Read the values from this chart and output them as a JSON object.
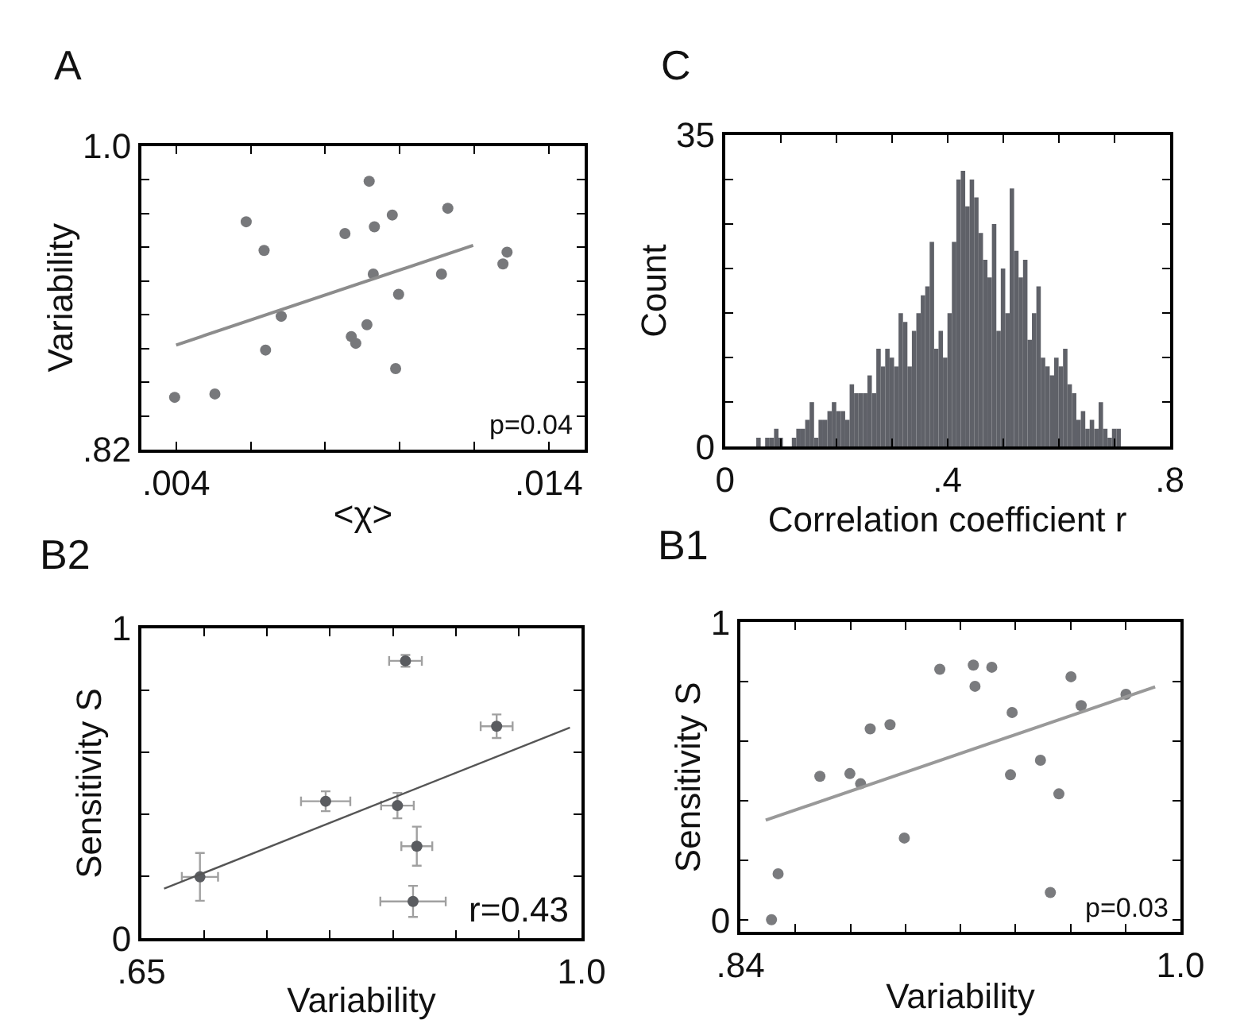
{
  "chart_data": [
    {
      "type": "scatter",
      "title": "A",
      "xlabel": "<χ>",
      "ylabel": "Variability",
      "xlim": [
        0.00307,
        0.01496
      ],
      "ylim": [
        0.82,
        1.0
      ],
      "xticks": [
        {
          "value": 0.004,
          "label": ".004"
        },
        {
          "value": 0.006,
          "label": null
        },
        {
          "value": 0.008,
          "label": null
        },
        {
          "value": 0.01,
          "label": null
        },
        {
          "value": 0.012,
          "label": null
        },
        {
          "value": 0.014,
          "label": ".014"
        }
      ],
      "yticks": [
        {
          "value": 0.82,
          "label": ".82"
        },
        {
          "value": 0.84,
          "label": null
        },
        {
          "value": 0.86,
          "label": null
        },
        {
          "value": 0.88,
          "label": null
        },
        {
          "value": 0.9,
          "label": null
        },
        {
          "value": 0.92,
          "label": null
        },
        {
          "value": 0.94,
          "label": null
        },
        {
          "value": 0.96,
          "label": null
        },
        {
          "value": 0.98,
          "label": null
        },
        {
          "value": 1.0,
          "label": "1.0"
        }
      ],
      "marker": "circle",
      "annotations": [
        "p=0.04"
      ],
      "series": [
        {
          "type": "scatter",
          "color": "#77787b",
          "x": [
            0.00396,
            0.00504,
            0.00588,
            0.00636,
            0.0064,
            0.00682,
            0.00853,
            0.0087,
            0.00882,
            0.00912,
            0.00918,
            0.00932,
            0.00929,
            0.0098,
            0.00997,
            0.00989,
            0.01112,
            0.01129,
            0.01277,
            0.01288
          ],
          "values": [
            0.851,
            0.853,
            0.955,
            0.938,
            0.879,
            0.899,
            0.948,
            0.887,
            0.883,
            0.894,
            0.979,
            0.952,
            0.924,
            0.959,
            0.912,
            0.868,
            0.924,
            0.963,
            0.93,
            0.937
          ]
        },
        {
          "type": "line",
          "color": "#8c8c8c",
          "line_style": "solid",
          "marker": "none",
          "x": [
            0.004,
            0.01197
          ],
          "values": [
            0.882,
            0.941
          ]
        }
      ]
    },
    {
      "type": "histogram",
      "title": "C",
      "xlabel": "Correlation coefficient r",
      "ylabel": "Count",
      "xlim": [
        0,
        0.8
      ],
      "ylim": [
        0,
        35
      ],
      "color": "#5f6168",
      "xticks": [
        0,
        {
          "value": 0.1,
          "label": null
        },
        {
          "value": 0.2,
          "label": null
        },
        {
          "value": 0.3,
          "label": null
        },
        {
          "value": 0.4,
          "label": ".4"
        },
        {
          "value": 0.5,
          "label": null
        },
        {
          "value": 0.6,
          "label": null
        },
        {
          "value": 0.7,
          "label": null
        },
        {
          "value": 0.8,
          "label": ".8"
        }
      ],
      "yticks": [
        0,
        {
          "value": 5,
          "label": null
        },
        {
          "value": 10,
          "label": null
        },
        {
          "value": 15,
          "label": null
        },
        {
          "value": 20,
          "label": null
        },
        {
          "value": 25,
          "label": null
        },
        {
          "value": 30,
          "label": null
        },
        35
      ],
      "bins": [
        0.056,
        0.064,
        0.072,
        0.08,
        0.088,
        0.096,
        0.104,
        0.112,
        0.12,
        0.128,
        0.136,
        0.144,
        0.152,
        0.16,
        0.168,
        0.176,
        0.184,
        0.192,
        0.2,
        0.208,
        0.216,
        0.224,
        0.232,
        0.24,
        0.248,
        0.256,
        0.264,
        0.272,
        0.28,
        0.288,
        0.296,
        0.304,
        0.312,
        0.32,
        0.328,
        0.336,
        0.344,
        0.352,
        0.36,
        0.368,
        0.376,
        0.384,
        0.392,
        0.4,
        0.408,
        0.416,
        0.424,
        0.432,
        0.44,
        0.448,
        0.456,
        0.464,
        0.472,
        0.48,
        0.488,
        0.496,
        0.504,
        0.512,
        0.52,
        0.528,
        0.536,
        0.544,
        0.552,
        0.56,
        0.568,
        0.576,
        0.584,
        0.592,
        0.6,
        0.608,
        0.616,
        0.624,
        0.632,
        0.64,
        0.648,
        0.656,
        0.664,
        0.672,
        0.68,
        0.688,
        0.696,
        0.704,
        0.712
      ],
      "values": [
        1,
        0,
        1,
        1,
        2,
        1,
        0,
        0,
        1,
        2,
        2,
        3,
        5,
        1,
        3,
        3,
        4,
        5,
        4,
        4,
        3,
        7,
        6,
        6,
        6,
        8,
        6,
        11,
        9,
        11,
        10,
        9,
        15,
        14,
        9,
        13,
        15,
        17,
        18,
        23,
        11,
        13,
        10,
        15,
        23,
        30,
        31,
        27,
        30,
        28,
        24,
        21,
        19,
        25,
        13,
        20,
        15,
        29,
        22,
        19,
        21,
        12,
        15,
        18,
        10,
        9,
        8,
        10,
        9,
        11,
        7,
        6,
        3,
        4,
        2,
        3,
        2,
        5,
        2,
        1,
        2,
        2
      ]
    },
    {
      "type": "scatter",
      "title": "B2",
      "xlabel": "Variability",
      "ylabel": "Sensitivity S",
      "xlim": [
        0.65,
        1.0
      ],
      "ylim": [
        0,
        1
      ],
      "xticks": [
        {
          "value": 0.65,
          "label": ".65"
        },
        {
          "value": 0.7,
          "label": null
        },
        {
          "value": 0.75,
          "label": null
        },
        {
          "value": 0.8,
          "label": null
        },
        {
          "value": 0.85,
          "label": null
        },
        {
          "value": 0.9,
          "label": null
        },
        {
          "value": 0.95,
          "label": null
        },
        {
          "value": 1.0,
          "label": "1.0"
        }
      ],
      "yticks": [
        0,
        {
          "value": 0.2,
          "label": null
        },
        {
          "value": 0.4,
          "label": null
        },
        {
          "value": 0.6,
          "label": null
        },
        {
          "value": 0.8,
          "label": null
        },
        1
      ],
      "marker": "circle",
      "annotations": [
        "r=0.43"
      ],
      "series": [
        {
          "type": "scatter",
          "color": "#5a5c60",
          "x": [
            0.6965,
            0.7965,
            0.8536,
            0.86,
            0.9325,
            0.869,
            0.866
          ],
          "values": [
            0.198,
            0.442,
            0.428,
            0.895,
            0.684,
            0.297,
            0.119
          ],
          "errors": [
            0.077,
            0.032,
            0.041,
            0.019,
            0.038,
            0.063,
            0.05
          ],
          "xerrors": [
            0.0144,
            0.0196,
            0.013,
            0.013,
            0.0127,
            0.0123,
            0.026
          ]
        },
        {
          "type": "line",
          "color": "#555555",
          "line_style": "solid",
          "marker": "none",
          "x": [
            0.668,
            0.9908
          ],
          "values": [
            0.16,
            0.68
          ]
        }
      ]
    },
    {
      "type": "scatter",
      "title": "B1",
      "xlabel": "Variability",
      "ylabel": "Sensitivity S",
      "xlim": [
        0.84,
        1.0
      ],
      "ylim": [
        -0.04,
        1
      ],
      "xticks": [
        {
          "value": 0.84,
          "label": ".84"
        },
        {
          "value": 0.86,
          "label": null
        },
        {
          "value": 0.88,
          "label": null
        },
        {
          "value": 0.9,
          "label": null
        },
        {
          "value": 0.92,
          "label": null
        },
        {
          "value": 0.94,
          "label": null
        },
        {
          "value": 0.96,
          "label": null
        },
        {
          "value": 0.98,
          "label": null
        },
        {
          "value": 1.0,
          "label": "1.0"
        }
      ],
      "yticks": [
        0,
        {
          "value": 0.2,
          "label": null
        },
        {
          "value": 0.4,
          "label": null
        },
        {
          "value": 0.6,
          "label": null
        },
        {
          "value": 0.8,
          "label": null
        },
        1
      ],
      "marker": "circle",
      "annotations": [
        "p=0.03"
      ],
      "series": [
        {
          "type": "scatter",
          "color": "#7a7b7e",
          "x": [
            0.8513,
            0.8537,
            0.8689,
            0.8798,
            0.8837,
            0.8872,
            0.8944,
            0.8996,
            0.9125,
            0.9247,
            0.9253,
            0.9314,
            0.9388,
            0.9382,
            0.9491,
            0.9527,
            0.9558,
            0.9602,
            0.9639,
            0.9802
          ],
          "values": [
            0.002,
            0.156,
            0.483,
            0.492,
            0.458,
            0.642,
            0.656,
            0.276,
            0.842,
            0.856,
            0.785,
            0.849,
            0.697,
            0.488,
            0.537,
            0.093,
            0.424,
            0.817,
            0.72,
            0.758
          ]
        },
        {
          "type": "line",
          "color": "#999999",
          "line_style": "solid",
          "marker": "none",
          "x": [
            0.8492,
            0.9908
          ],
          "values": [
            0.336,
            0.783
          ]
        }
      ]
    }
  ]
}
